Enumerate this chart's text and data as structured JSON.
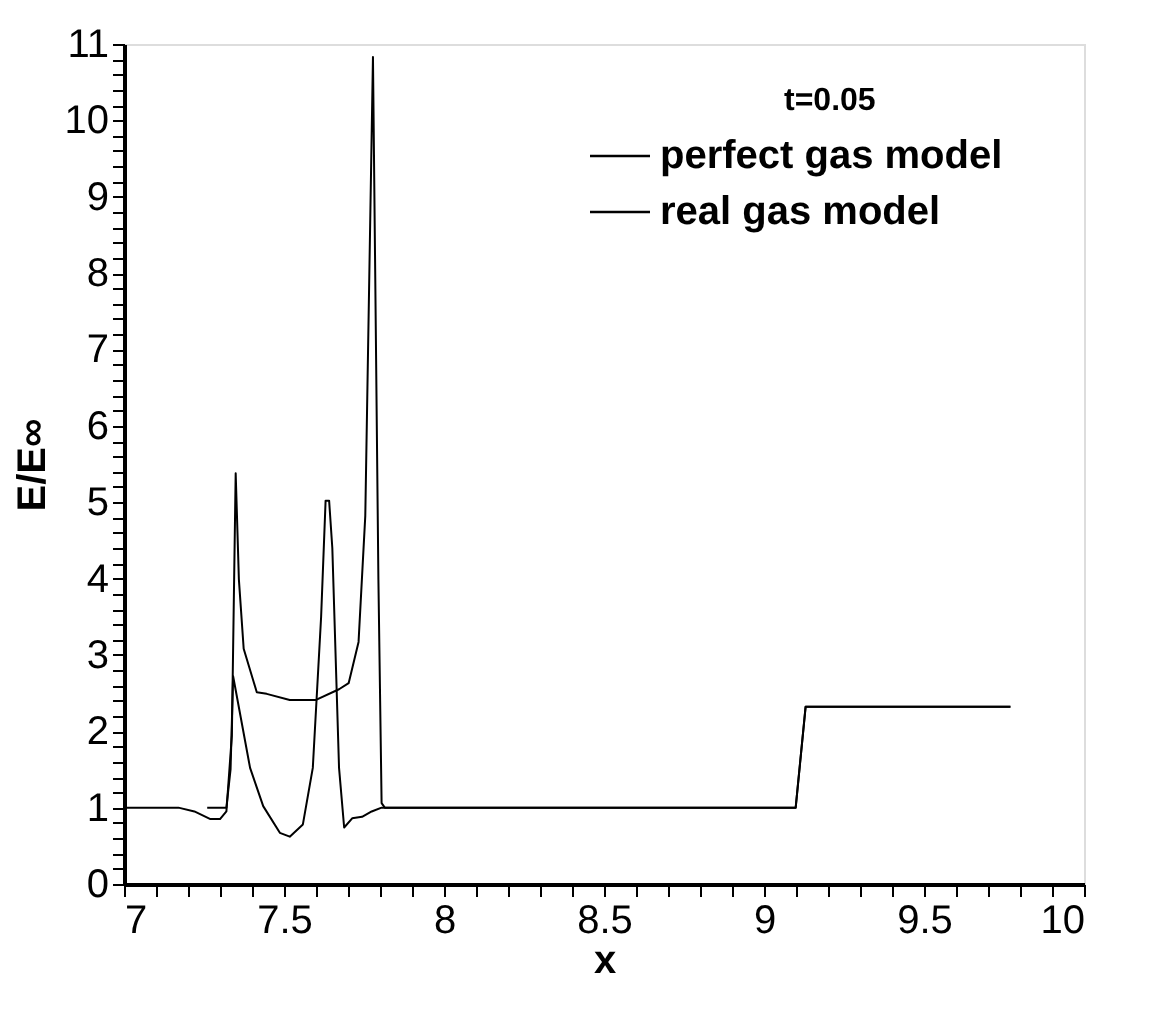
{
  "chart_data": {
    "type": "line",
    "xlabel": "x",
    "ylabel": "E/E∞",
    "annotations": [
      "t=0.05"
    ],
    "series": [
      {
        "name": "perfect gas model",
        "color": "#000000",
        "x": [
          7.0,
          7.17,
          7.22,
          7.27,
          7.3,
          7.32,
          7.337,
          7.349,
          7.359,
          7.374,
          7.415,
          7.446,
          7.518,
          7.6,
          7.672,
          7.702,
          7.733,
          7.754,
          7.778,
          7.795,
          7.805,
          7.815,
          9.099,
          9.13,
          9.77
        ],
        "values": [
          1.0,
          1.0,
          0.95,
          0.85,
          0.85,
          0.95,
          1.94,
          5.38,
          3.99,
          3.08,
          2.51,
          2.49,
          2.41,
          2.41,
          2.55,
          2.63,
          3.17,
          4.82,
          10.83,
          3.99,
          1.06,
          1.0,
          1.0,
          2.32,
          2.32
        ]
      },
      {
        "name": "real gas model",
        "color": "#000000",
        "x": [
          7.26,
          7.32,
          7.333,
          7.341,
          7.364,
          7.394,
          7.435,
          7.487,
          7.518,
          7.559,
          7.59,
          7.616,
          7.63,
          7.641,
          7.651,
          7.672,
          7.688,
          7.713,
          7.744,
          7.774,
          7.805,
          7.815,
          9.099,
          9.13,
          9.77
        ],
        "values": [
          1.0,
          1.0,
          1.5,
          2.72,
          2.2,
          1.52,
          1.02,
          0.67,
          0.62,
          0.78,
          1.52,
          3.5,
          5.02,
          5.02,
          4.4,
          1.52,
          0.74,
          0.86,
          0.88,
          0.95,
          1.0,
          1.0,
          1.0,
          2.32,
          2.32
        ]
      }
    ],
    "xlim": [
      7,
      10
    ],
    "ylim": [
      0,
      11
    ],
    "xticks": [
      7,
      {
        "value": 7.1,
        "label": null
      },
      {
        "value": 7.2,
        "label": null
      },
      {
        "value": 7.3,
        "label": null
      },
      {
        "value": 7.4,
        "label": null
      },
      7.5,
      {
        "value": 7.6,
        "label": null
      },
      {
        "value": 7.7,
        "label": null
      },
      {
        "value": 7.8,
        "label": null
      },
      {
        "value": 7.9,
        "label": null
      },
      8,
      {
        "value": 8.1,
        "label": null
      },
      {
        "value": 8.2,
        "label": null
      },
      {
        "value": 8.3,
        "label": null
      },
      {
        "value": 8.4,
        "label": null
      },
      8.5,
      {
        "value": 8.6,
        "label": null
      },
      {
        "value": 8.7,
        "label": null
      },
      {
        "value": 8.8,
        "label": null
      },
      {
        "value": 8.9,
        "label": null
      },
      9,
      {
        "value": 9.1,
        "label": null
      },
      {
        "value": 9.2,
        "label": null
      },
      {
        "value": 9.3,
        "label": null
      },
      {
        "value": 9.4,
        "label": null
      },
      9.5,
      {
        "value": 9.6,
        "label": null
      },
      {
        "value": 9.7,
        "label": null
      },
      {
        "value": 9.8,
        "label": null
      },
      {
        "value": 9.9,
        "label": null
      },
      10
    ],
    "yticks": [
      0,
      {
        "value": 0.2,
        "label": null
      },
      {
        "value": 0.4,
        "label": null
      },
      {
        "value": 0.6,
        "label": null
      },
      {
        "value": 0.8,
        "label": null
      },
      1,
      {
        "value": 1.2,
        "label": null
      },
      {
        "value": 1.4,
        "label": null
      },
      {
        "value": 1.6,
        "label": null
      },
      {
        "value": 1.8,
        "label": null
      },
      2,
      {
        "value": 2.2,
        "label": null
      },
      {
        "value": 2.4,
        "label": null
      },
      {
        "value": 2.6,
        "label": null
      },
      {
        "value": 2.8,
        "label": null
      },
      3,
      {
        "value": 3.2,
        "label": null
      },
      {
        "value": 3.4,
        "label": null
      },
      {
        "value": 3.6,
        "label": null
      },
      {
        "value": 3.8,
        "label": null
      },
      4,
      {
        "value": 4.2,
        "label": null
      },
      {
        "value": 4.4,
        "label": null
      },
      {
        "value": 4.6,
        "label": null
      },
      {
        "value": 4.8,
        "label": null
      },
      5,
      {
        "value": 5.2,
        "label": null
      },
      {
        "value": 5.4,
        "label": null
      },
      {
        "value": 5.6,
        "label": null
      },
      {
        "value": 5.8,
        "label": null
      },
      6,
      {
        "value": 6.2,
        "label": null
      },
      {
        "value": 6.4,
        "label": null
      },
      {
        "value": 6.6,
        "label": null
      },
      {
        "value": 6.8,
        "label": null
      },
      7,
      {
        "value": 7.2,
        "label": null
      },
      {
        "value": 7.4,
        "label": null
      },
      {
        "value": 7.6,
        "label": null
      },
      {
        "value": 7.8,
        "label": null
      },
      8,
      {
        "value": 8.2,
        "label": null
      },
      {
        "value": 8.4,
        "label": null
      },
      {
        "value": 8.6,
        "label": null
      },
      {
        "value": 8.8,
        "label": null
      },
      9,
      {
        "value": 9.2,
        "label": null
      },
      {
        "value": 9.4,
        "label": null
      },
      {
        "value": 9.6,
        "label": null
      },
      {
        "value": 9.8,
        "label": null
      },
      10,
      {
        "value": 10.2,
        "label": null
      },
      {
        "value": 10.4,
        "label": null
      },
      {
        "value": 10.6,
        "label": null
      },
      {
        "value": 10.8,
        "label": null
      },
      11
    ],
    "grid": false,
    "legend": "top right",
    "marker": "none",
    "line_style": "solid"
  }
}
